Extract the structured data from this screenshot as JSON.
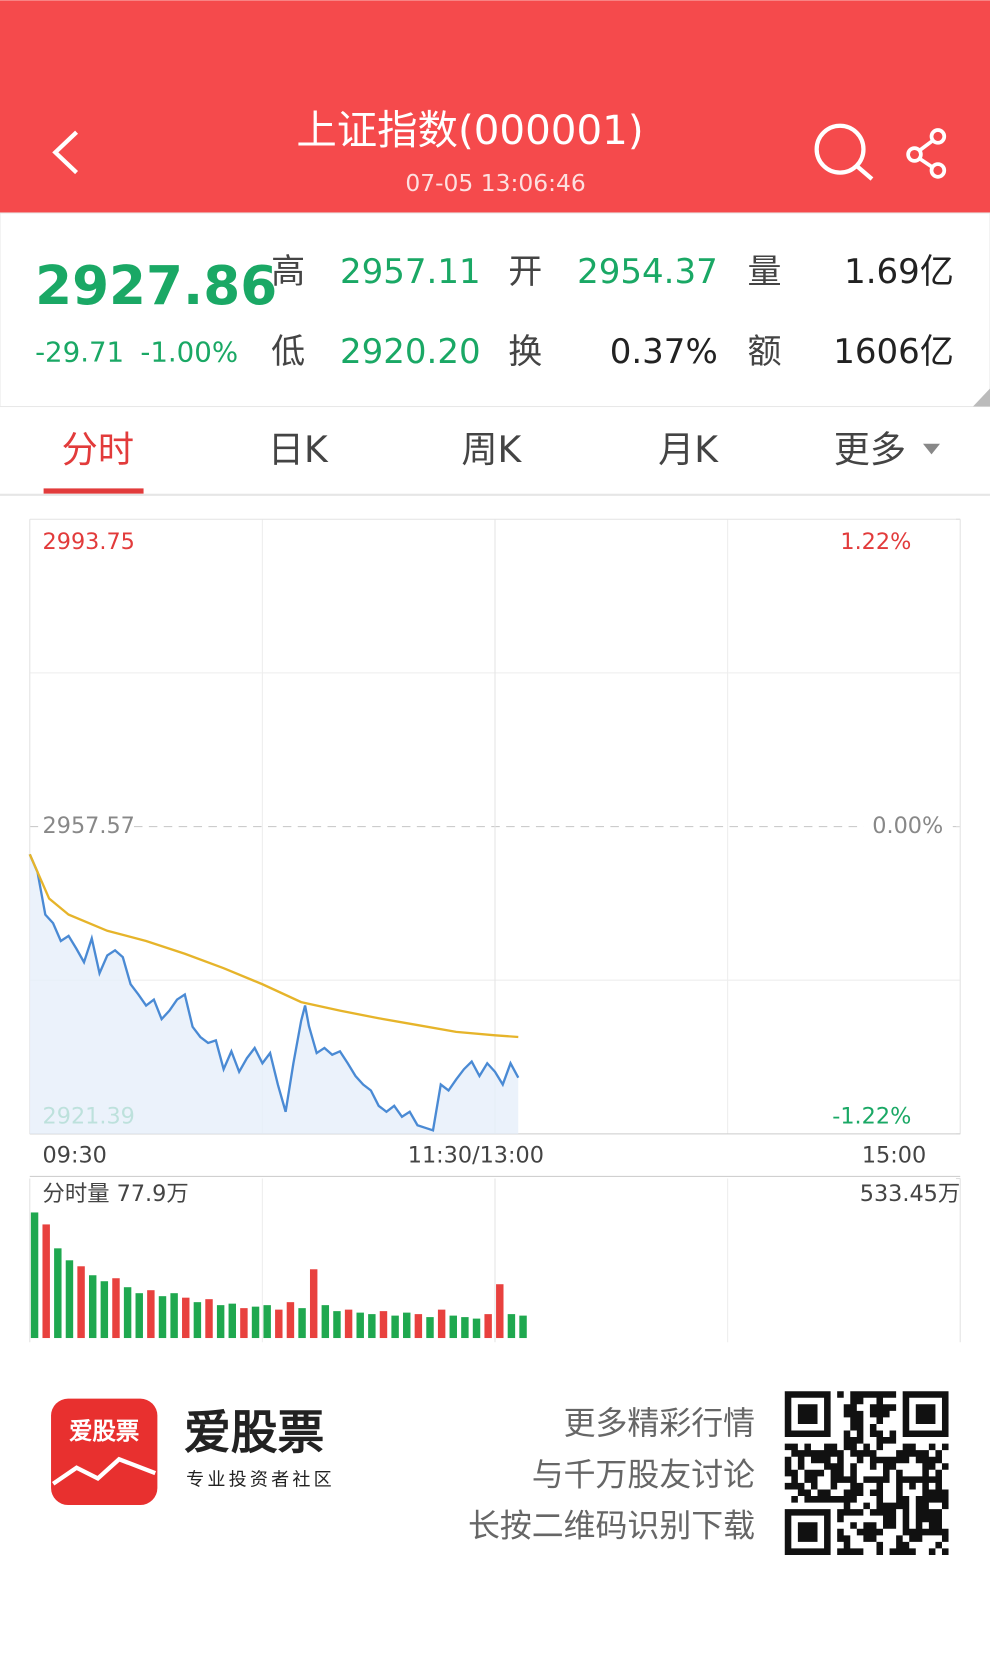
{
  "header": {
    "title": "上证指数(000001)",
    "datetime": "07-05 13:06:46"
  },
  "quote": {
    "price": "2927.86",
    "change": "-29.71",
    "change_pct": "-1.00%",
    "stats": [
      {
        "label": "高",
        "value": "2957.11",
        "color": "#1aa865"
      },
      {
        "label": "开",
        "value": "2954.37",
        "color": "#1aa865"
      },
      {
        "label": "量",
        "value": "1.69亿",
        "color": "#222222"
      },
      {
        "label": "低",
        "value": "2920.20",
        "color": "#1aa865"
      },
      {
        "label": "换",
        "value": "0.37%",
        "color": "#222222"
      },
      {
        "label": "额",
        "value": "1606亿",
        "color": "#222222"
      }
    ]
  },
  "tabs": {
    "items": [
      "分时",
      "日K",
      "周K",
      "月K",
      "更多"
    ],
    "active": 0
  },
  "chart_data": [
    {
      "type": "line",
      "xlim": [
        0,
        240
      ],
      "xticks": [
        {
          "value": 0,
          "label": "09:30"
        },
        {
          "value": 120,
          "label": "11:30/13:00"
        },
        {
          "value": 240,
          "label": "15:00"
        }
      ],
      "ylim": [
        2921.39,
        2993.75
      ],
      "yticks": [
        2921.39,
        2957.57,
        2993.75
      ],
      "y2lim": [
        -1.22,
        1.22
      ],
      "y2ticks": [
        {
          "value": -1.22,
          "label": "-1.22%"
        },
        {
          "value": 0,
          "label": "0.00%"
        },
        {
          "value": 1.22,
          "label": "1.22%"
        }
      ],
      "grid": true,
      "series": [
        {
          "color": "#4a8ad4",
          "fill": "#e6effa",
          "x": [
            0,
            2,
            4,
            6,
            8,
            10,
            12,
            14,
            16,
            18,
            20,
            22,
            24,
            26,
            28,
            30,
            32,
            34,
            36,
            38,
            40,
            42,
            44,
            46,
            48,
            50,
            52,
            54,
            56,
            58,
            60,
            62,
            64,
            66,
            68,
            70,
            71,
            72,
            74,
            76,
            78,
            80,
            82,
            84,
            86,
            88,
            90,
            92,
            94,
            96,
            98,
            100,
            102,
            104,
            106,
            108,
            110,
            112,
            114,
            116,
            118,
            120,
            122,
            124,
            126
          ],
          "values": [
            2954.3,
            2952.2,
            2947.2,
            2946.2,
            2944.1,
            2944.7,
            2943.2,
            2941.6,
            2944.4,
            2940.3,
            2942.4,
            2943.0,
            2942.2,
            2939.0,
            2937.8,
            2936.5,
            2937.2,
            2934.9,
            2935.9,
            2937.2,
            2937.8,
            2934.0,
            2932.8,
            2932.1,
            2932.4,
            2929.0,
            2931.1,
            2928.7,
            2930.3,
            2931.5,
            2929.7,
            2930.9,
            2927.2,
            2924.0,
            2929.7,
            2934.7,
            2936.5,
            2934.1,
            2930.9,
            2931.5,
            2930.7,
            2931.1,
            2929.7,
            2928.2,
            2927.2,
            2926.5,
            2924.7,
            2924.0,
            2924.7,
            2923.4,
            2924.0,
            2922.4,
            2922.1,
            2921.8,
            2927.2,
            2926.5,
            2927.8,
            2929.0,
            2929.9,
            2928.2,
            2929.7,
            2928.7,
            2927.2,
            2929.7,
            2928.0
          ]
        },
        {
          "color": "#e6b42a",
          "x": [
            0,
            5,
            10,
            20,
            30,
            40,
            50,
            60,
            70,
            80,
            90,
            100,
            110,
            120,
            126
          ],
          "values": [
            2954.3,
            2949.1,
            2947.2,
            2945.3,
            2944.1,
            2942.6,
            2940.9,
            2939.0,
            2936.9,
            2935.9,
            2935.0,
            2934.2,
            2933.4,
            2933.0,
            2932.8
          ]
        }
      ]
    },
    {
      "type": "bar",
      "title": "分时量 77.9万",
      "xlim": [
        0,
        240
      ],
      "ylim": [
        0,
        533.45
      ],
      "yticks": [
        {
          "value": 533.45,
          "label": "533.45万"
        }
      ],
      "x": [
        0,
        3,
        6,
        9,
        12,
        15,
        18,
        21,
        24,
        27,
        30,
        33,
        36,
        39,
        42,
        45,
        48,
        51,
        54,
        57,
        60,
        63,
        66,
        69,
        72,
        75,
        78,
        81,
        84,
        87,
        90,
        93,
        96,
        99,
        102,
        105,
        108,
        111,
        114,
        117,
        120,
        123,
        126
      ],
      "values": [
        420,
        380,
        300,
        260,
        240,
        210,
        190,
        200,
        170,
        150,
        160,
        140,
        150,
        135,
        120,
        130,
        110,
        115,
        100,
        105,
        110,
        95,
        120,
        100,
        230,
        110,
        90,
        95,
        85,
        80,
        90,
        75,
        85,
        80,
        70,
        95,
        75,
        70,
        65,
        80,
        180,
        80,
        75
      ],
      "colors": [
        "#1fa84f",
        "#e8413e",
        "#1fa84f",
        "#1fa84f",
        "#e8413e",
        "#1fa84f",
        "#1fa84f",
        "#e8413e",
        "#1fa84f",
        "#1fa84f",
        "#e8413e",
        "#1fa84f",
        "#1fa84f",
        "#e8413e",
        "#1fa84f",
        "#e8413e",
        "#1fa84f",
        "#1fa84f",
        "#e8413e",
        "#1fa84f",
        "#1fa84f",
        "#e8413e",
        "#e8413e",
        "#1fa84f",
        "#e8413e",
        "#1fa84f",
        "#1fa84f",
        "#e8413e",
        "#1fa84f",
        "#1fa84f",
        "#e8413e",
        "#1fa84f",
        "#1fa84f",
        "#e8413e",
        "#1fa84f",
        "#e8413e",
        "#1fa84f",
        "#1fa84f",
        "#1fa84f",
        "#e8413e",
        "#e8413e",
        "#1fa84f",
        "#1fa84f"
      ]
    }
  ],
  "footer": {
    "logo_text": "爱股票",
    "brand": "爱股票",
    "slogan": "专业投资者社区",
    "lines": [
      "更多精彩行情",
      "与千万股友讨论",
      "长按二维码识别下载"
    ]
  }
}
